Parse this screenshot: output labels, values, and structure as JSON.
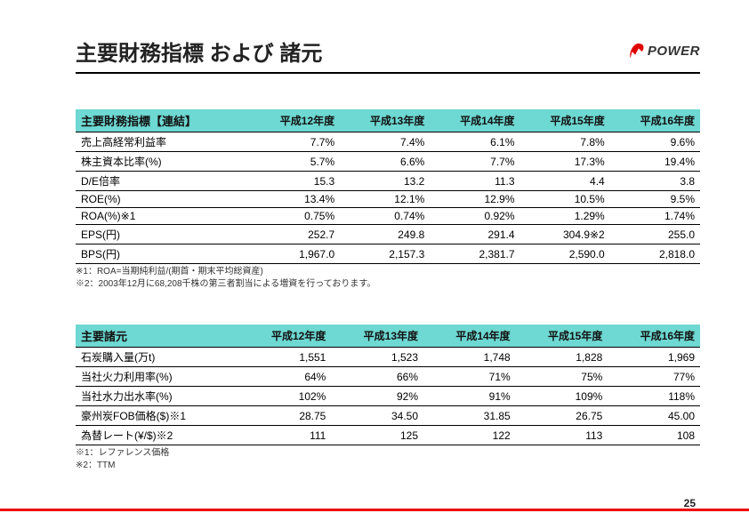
{
  "title": "主要財務指標 および 諸元",
  "logo_text": "POWER",
  "page_number": "25",
  "table1": {
    "header_label": "主要財務指標【連結】",
    "year_cols": [
      "平成12年度",
      "平成13年度",
      "平成14年度",
      "平成15年度",
      "平成16年度"
    ],
    "rows": [
      {
        "label": "売上高経常利益率",
        "vals": [
          "7.7%",
          "7.4%",
          "6.1%",
          "7.8%",
          "9.6%"
        ]
      },
      {
        "label": "株主資本比率(%)",
        "vals": [
          "5.7%",
          "6.6%",
          "7.7%",
          "17.3%",
          "19.4%"
        ]
      },
      {
        "label": "D/E倍率",
        "vals": [
          "15.3",
          "13.2",
          "11.3",
          "4.4",
          "3.8"
        ]
      },
      {
        "label": "ROE(%)",
        "vals": [
          "13.4%",
          "12.1%",
          "12.9%",
          "10.5%",
          "9.5%"
        ]
      },
      {
        "label": "ROA(%)※1",
        "vals": [
          "0.75%",
          "0.74%",
          "0.92%",
          "1.29%",
          "1.74%"
        ]
      },
      {
        "label": "EPS(円)",
        "vals": [
          "252.7",
          "249.8",
          "291.4",
          "304.9※2",
          "255.0"
        ]
      },
      {
        "label": "BPS(円)",
        "vals": [
          "1,967.0",
          "2,157.3",
          "2,381.7",
          "2,590.0",
          "2,818.0"
        ]
      }
    ],
    "notes": [
      "※1：ROA=当期純利益/(期首・期末平均総資産)",
      "※2：2003年12月に68,208千株の第三者割当による増資を行っております。"
    ]
  },
  "table2": {
    "header_label": "主要諸元",
    "year_cols": [
      "平成12年度",
      "平成13年度",
      "平成14年度",
      "平成15年度",
      "平成16年度"
    ],
    "rows": [
      {
        "label": "石炭購入量(万t)",
        "vals": [
          "1,551",
          "1,523",
          "1,748",
          "1,828",
          "1,969"
        ]
      },
      {
        "label": "当社火力利用率(%)",
        "vals": [
          "64%",
          "66%",
          "71%",
          "75%",
          "77%"
        ]
      },
      {
        "label": "当社水力出水率(%)",
        "vals": [
          "102%",
          "92%",
          "91%",
          "109%",
          "118%"
        ]
      },
      {
        "label": "豪州炭FOB価格($)※1",
        "vals": [
          "28.75",
          "34.50",
          "31.85",
          "26.75",
          "45.00"
        ]
      },
      {
        "label": "為替レート(¥/$)※2",
        "vals": [
          "111",
          "125",
          "122",
          "113",
          "108"
        ]
      }
    ],
    "notes": [
      "※1：レファレンス価格",
      "※2：TTM"
    ]
  },
  "colors": {
    "header_bg": "#6ed8d2",
    "red": "#e00000",
    "underline": "#000000"
  }
}
